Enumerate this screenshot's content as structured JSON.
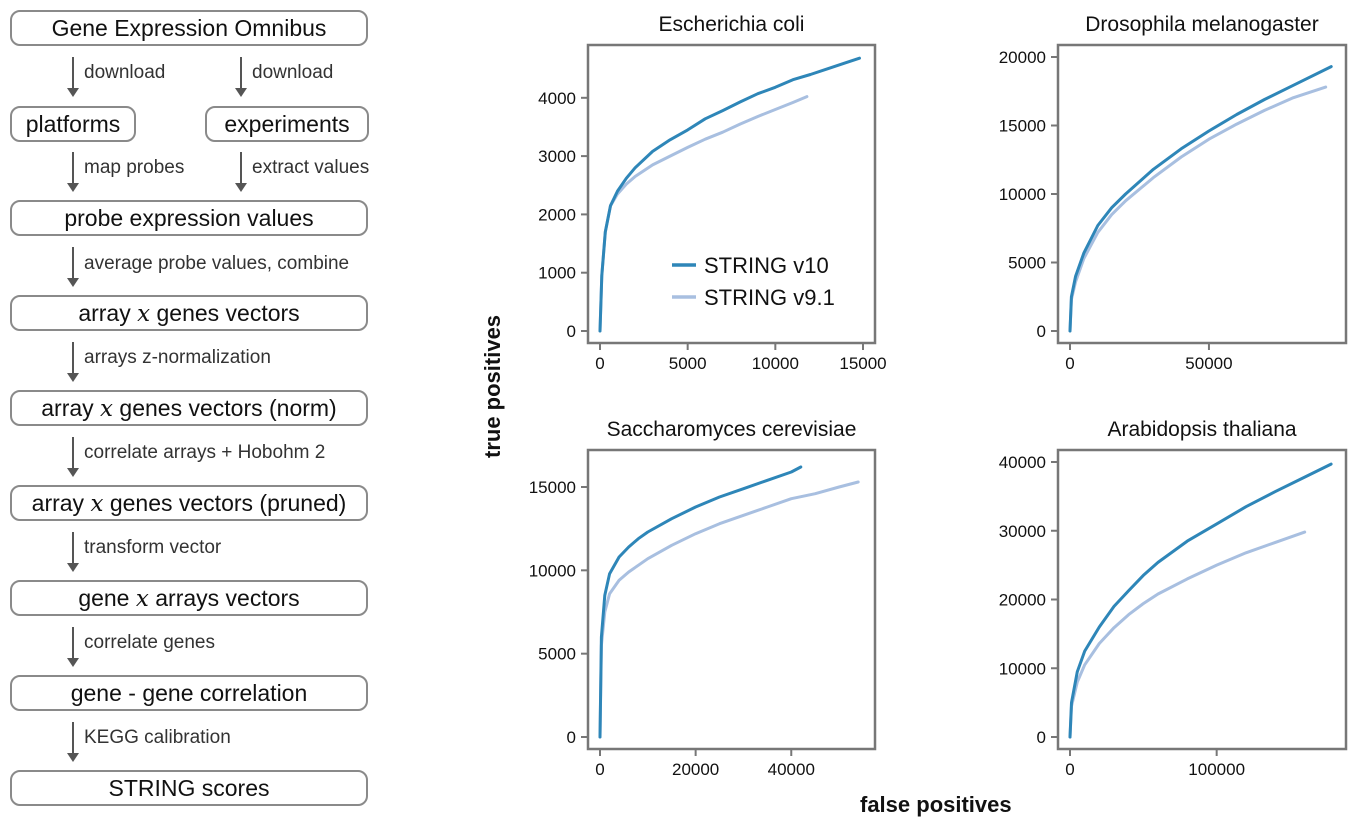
{
  "flowchart": {
    "boxes": {
      "geo": "Gene Expression Omnibus",
      "platforms": "platforms",
      "experiments": "experiments",
      "probe": "probe expression values",
      "agv_pre": "array ",
      "agv_x": "x",
      "agv_post": " genes vectors",
      "agvn_pre": "array ",
      "agvn_x": "x",
      "agvn_post": " genes vectors (norm)",
      "agvp_pre": "array ",
      "agvp_x": "x",
      "agvp_post": " genes vectors (pruned)",
      "gav_pre": "gene ",
      "gav_x": "x",
      "gav_post": " arrays vectors",
      "ggc": "gene - gene correlation",
      "scores": "STRING scores"
    },
    "steps": {
      "download_left": "download",
      "download_right": "download",
      "map_probes": "map probes",
      "extract_values": "extract values",
      "average": "average probe values, combine",
      "znorm": "arrays z-normalization",
      "hobohm": "correlate arrays + Hobohm 2",
      "transform": "transform vector",
      "correlate_genes": "correlate genes",
      "kegg": "KEGG calibration"
    }
  },
  "axes": {
    "ylabel": "true positives",
    "xlabel": "false positives"
  },
  "legend": {
    "position": "inside-lower-right of first panel",
    "v10": "STRING v10",
    "v91": "STRING v9.1"
  },
  "colors": {
    "v10": "#2e86b8",
    "v91": "#a8bfe0",
    "frame": "#777777",
    "text": "#111111"
  },
  "chart_data": [
    {
      "type": "line",
      "title": "Escherichia coli",
      "xlim": [
        0,
        15000
      ],
      "ylim": [
        0,
        4700
      ],
      "xticks": [
        0,
        5000,
        10000,
        15000
      ],
      "yticks": [
        0,
        1000,
        2000,
        3000,
        4000
      ],
      "series": [
        {
          "name": "STRING v10",
          "x": [
            0,
            100,
            300,
            600,
            1000,
            1500,
            2000,
            3000,
            4000,
            5000,
            6000,
            7000,
            8000,
            9000,
            10000,
            11000,
            12000,
            13000,
            14000,
            14800
          ],
          "values": [
            0,
            950,
            1700,
            2150,
            2400,
            2620,
            2800,
            3080,
            3280,
            3450,
            3640,
            3780,
            3930,
            4070,
            4180,
            4310,
            4400,
            4500,
            4600,
            4680
          ]
        },
        {
          "name": "STRING v9.1",
          "x": [
            0,
            100,
            300,
            600,
            1000,
            1500,
            2000,
            3000,
            4000,
            5000,
            6000,
            7000,
            8000,
            9000,
            10000,
            11000,
            11800
          ],
          "values": [
            0,
            950,
            1700,
            2150,
            2350,
            2520,
            2650,
            2850,
            3000,
            3150,
            3290,
            3410,
            3550,
            3680,
            3800,
            3920,
            4020
          ]
        }
      ]
    },
    {
      "type": "line",
      "title": "Drosophila melanogaster",
      "xlim": [
        0,
        95000
      ],
      "ylim": [
        0,
        20000
      ],
      "xticks": [
        0,
        50000
      ],
      "yticks": [
        0,
        5000,
        10000,
        15000,
        20000
      ],
      "series": [
        {
          "name": "STRING v10",
          "x": [
            0,
            500,
            2000,
            5000,
            10000,
            15000,
            20000,
            30000,
            40000,
            50000,
            60000,
            70000,
            80000,
            94000
          ],
          "values": [
            0,
            2500,
            4000,
            5700,
            7700,
            9000,
            10000,
            11800,
            13300,
            14600,
            15800,
            16900,
            17900,
            19300
          ]
        },
        {
          "name": "STRING v9.1",
          "x": [
            0,
            500,
            2000,
            5000,
            10000,
            15000,
            20000,
            30000,
            40000,
            50000,
            60000,
            70000,
            80000,
            92000
          ],
          "values": [
            0,
            2300,
            3600,
            5300,
            7200,
            8500,
            9500,
            11200,
            12700,
            14000,
            15100,
            16100,
            17000,
            17800
          ]
        }
      ]
    },
    {
      "type": "line",
      "title": "Saccharomyces cerevisiae",
      "xlim": [
        0,
        55000
      ],
      "ylim": [
        0,
        16500
      ],
      "xticks": [
        0,
        20000,
        40000
      ],
      "yticks": [
        0,
        5000,
        10000,
        15000
      ],
      "series": [
        {
          "name": "STRING v10",
          "x": [
            0,
            300,
            1000,
            2000,
            4000,
            6000,
            8000,
            10000,
            15000,
            20000,
            25000,
            30000,
            35000,
            40000,
            42000
          ],
          "values": [
            0,
            6000,
            8500,
            9800,
            10800,
            11400,
            11900,
            12300,
            13100,
            13800,
            14400,
            14900,
            15400,
            15900,
            16200
          ]
        },
        {
          "name": "STRING v9.1",
          "x": [
            0,
            300,
            1000,
            2000,
            4000,
            6000,
            8000,
            10000,
            15000,
            20000,
            25000,
            30000,
            35000,
            40000,
            45000,
            50000,
            54000
          ],
          "values": [
            0,
            5500,
            7500,
            8600,
            9400,
            9900,
            10300,
            10700,
            11500,
            12200,
            12800,
            13300,
            13800,
            14300,
            14600,
            15000,
            15300
          ]
        }
      ]
    },
    {
      "type": "line",
      "title": "Arabidopsis thaliana",
      "xlim": [
        0,
        180000
      ],
      "ylim": [
        0,
        40000
      ],
      "xticks": [
        0,
        100000
      ],
      "yticks": [
        0,
        10000,
        20000,
        30000,
        40000
      ],
      "series": [
        {
          "name": "STRING v10",
          "x": [
            0,
            1000,
            5000,
            10000,
            20000,
            30000,
            40000,
            50000,
            60000,
            80000,
            100000,
            120000,
            140000,
            160000,
            178000
          ],
          "values": [
            0,
            5000,
            9500,
            12500,
            16000,
            19000,
            21300,
            23500,
            25400,
            28500,
            31000,
            33500,
            35700,
            37800,
            39700
          ]
        },
        {
          "name": "STRING v9.1",
          "x": [
            0,
            1000,
            5000,
            10000,
            20000,
            30000,
            40000,
            50000,
            60000,
            80000,
            100000,
            120000,
            140000,
            160000
          ],
          "values": [
            0,
            4500,
            8000,
            10500,
            13600,
            15900,
            17800,
            19400,
            20800,
            23000,
            25000,
            26800,
            28300,
            29800
          ]
        }
      ]
    }
  ]
}
